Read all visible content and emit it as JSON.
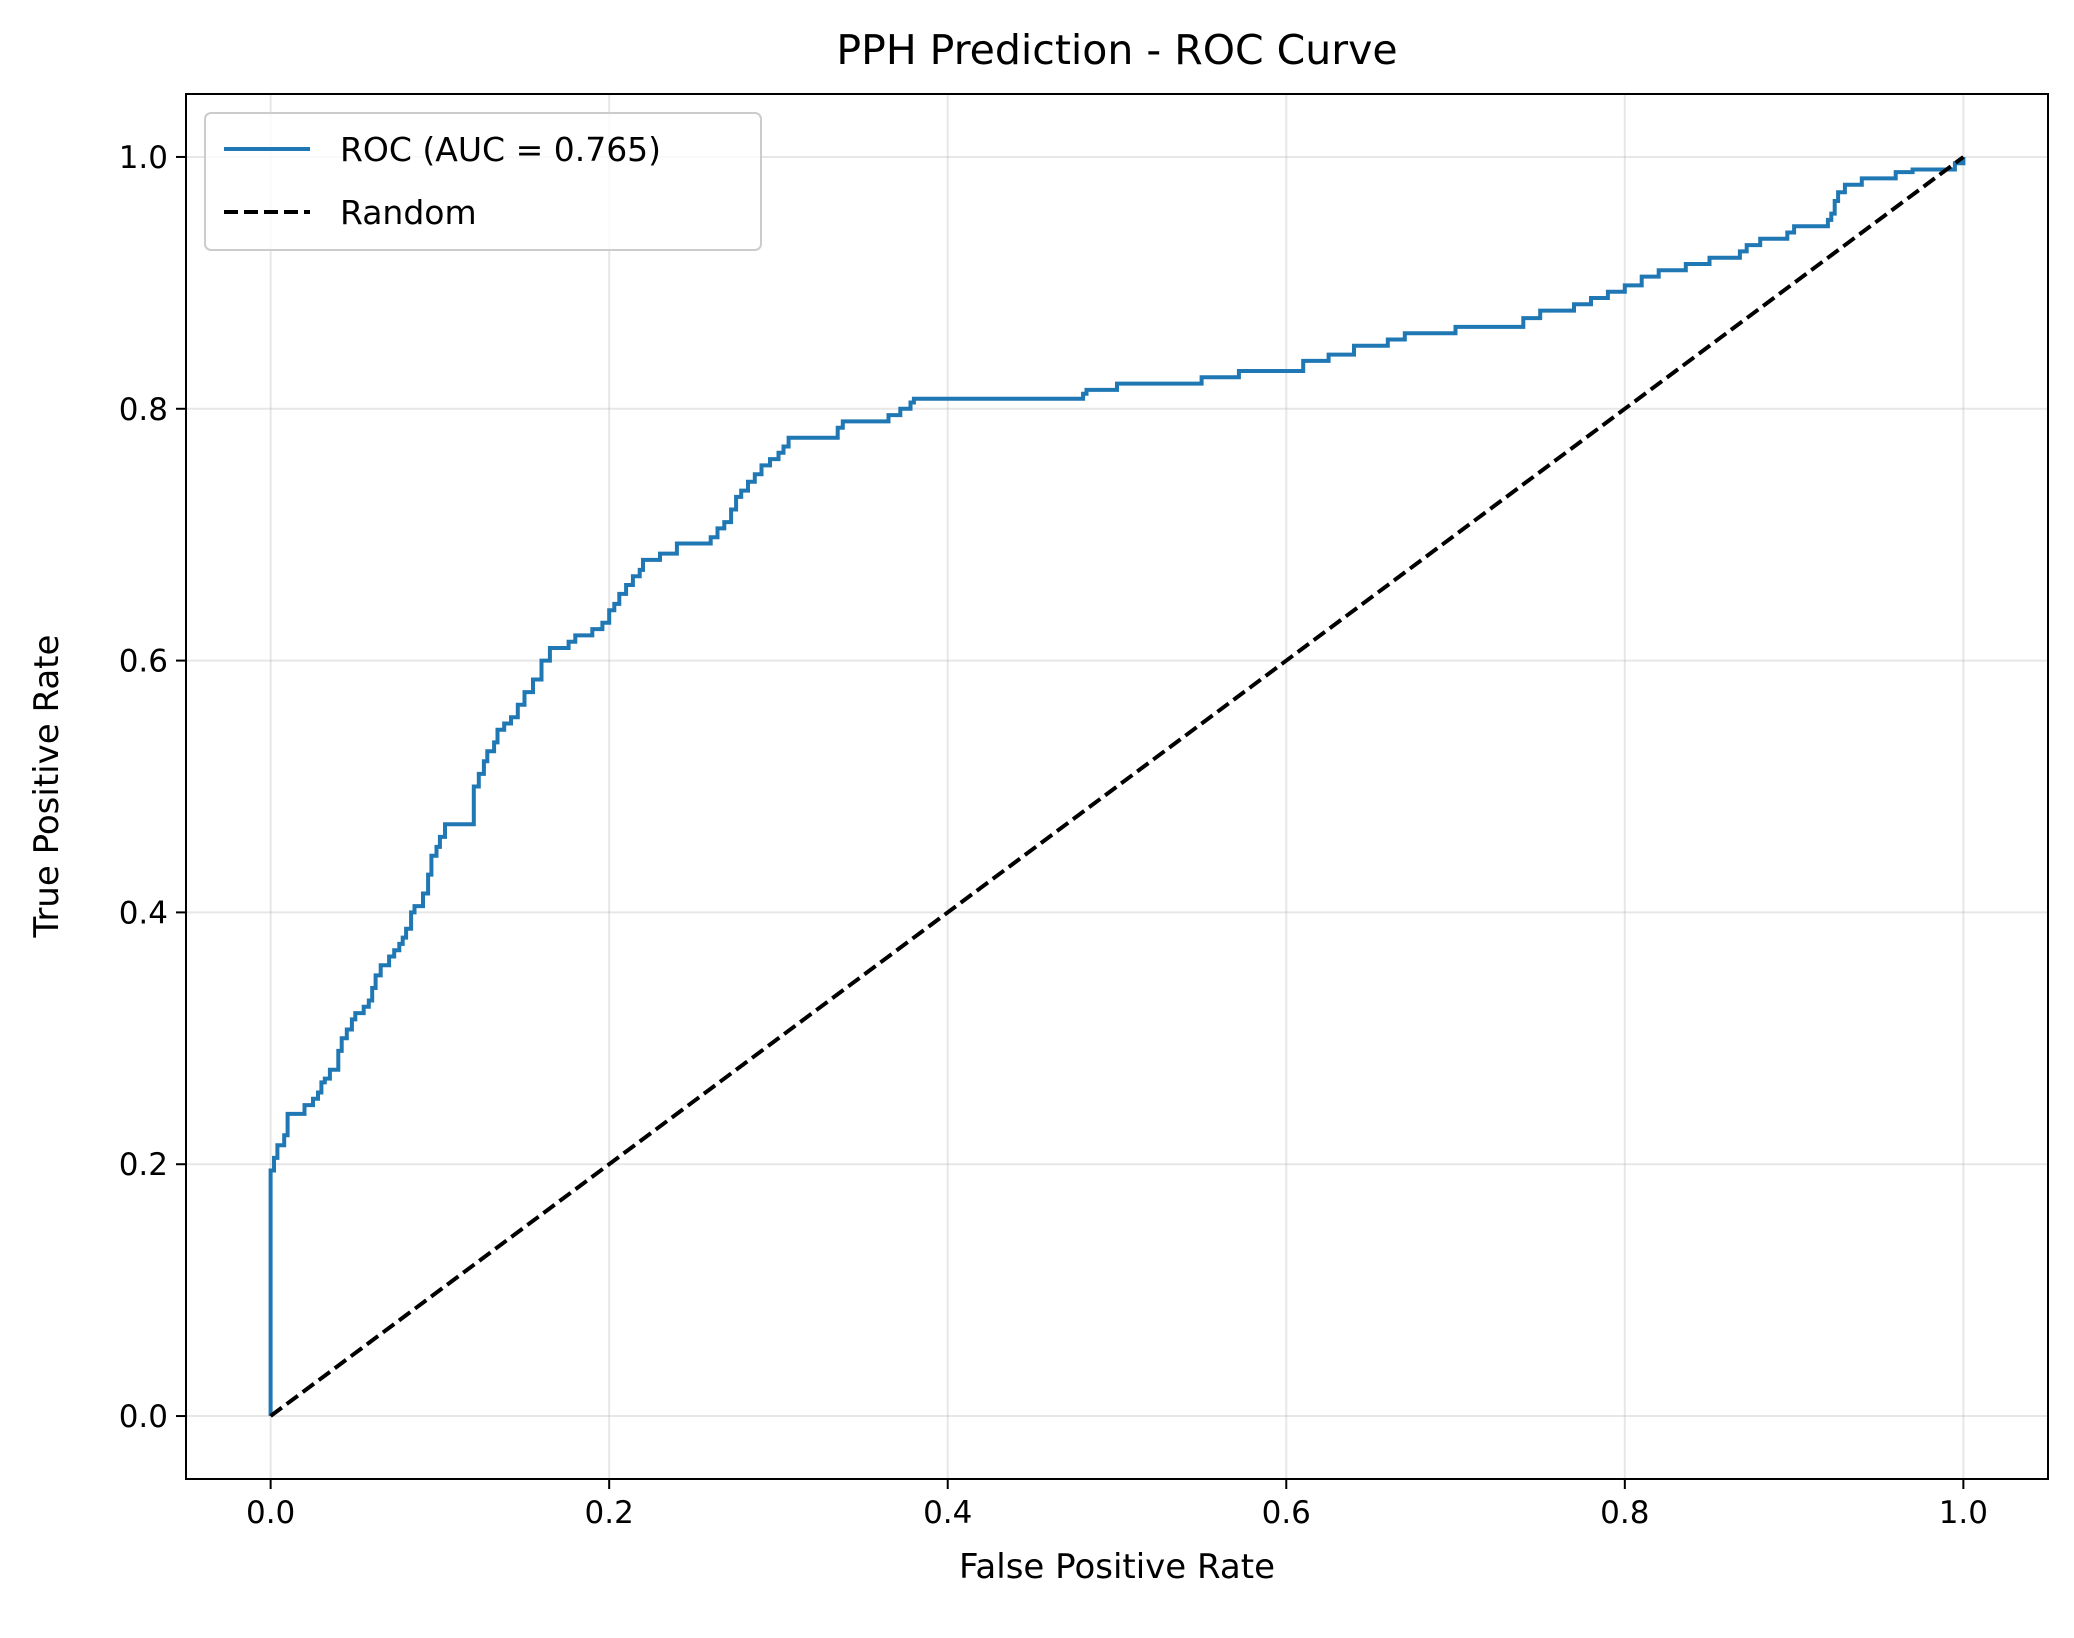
{
  "chart_data": {
    "type": "line",
    "title": "PPH Prediction - ROC Curve",
    "xlabel": "False Positive Rate",
    "ylabel": "True Positive Rate",
    "xlim": [
      -0.05,
      1.05
    ],
    "ylim": [
      -0.05,
      1.05
    ],
    "x_ticks": [
      "0.0",
      "0.2",
      "0.4",
      "0.6",
      "0.8",
      "1.0"
    ],
    "y_ticks": [
      "0.0",
      "0.2",
      "0.4",
      "0.6",
      "0.8",
      "1.0"
    ],
    "grid": true,
    "legend_position": "top-left",
    "series": [
      {
        "name": "ROC (AUC = 0.765)",
        "color": "#1f77b4",
        "style": "solid",
        "step": true,
        "x": [
          0.0,
          0.0,
          0.002,
          0.004,
          0.008,
          0.01,
          0.02,
          0.025,
          0.028,
          0.03,
          0.032,
          0.035,
          0.04,
          0.042,
          0.045,
          0.048,
          0.05,
          0.055,
          0.058,
          0.06,
          0.062,
          0.065,
          0.07,
          0.073,
          0.076,
          0.078,
          0.08,
          0.083,
          0.085,
          0.09,
          0.093,
          0.095,
          0.098,
          0.1,
          0.103,
          0.12,
          0.123,
          0.126,
          0.128,
          0.132,
          0.134,
          0.138,
          0.142,
          0.146,
          0.15,
          0.155,
          0.16,
          0.165,
          0.176,
          0.18,
          0.19,
          0.196,
          0.2,
          0.203,
          0.206,
          0.21,
          0.214,
          0.218,
          0.22,
          0.23,
          0.24,
          0.26,
          0.264,
          0.268,
          0.272,
          0.275,
          0.278,
          0.282,
          0.286,
          0.29,
          0.295,
          0.3,
          0.303,
          0.306,
          0.335,
          0.338,
          0.365,
          0.372,
          0.378,
          0.38,
          0.48,
          0.482,
          0.5,
          0.55,
          0.572,
          0.61,
          0.625,
          0.64,
          0.66,
          0.67,
          0.7,
          0.74,
          0.75,
          0.77,
          0.78,
          0.79,
          0.8,
          0.81,
          0.82,
          0.836,
          0.85,
          0.868,
          0.872,
          0.88,
          0.896,
          0.9,
          0.92,
          0.922,
          0.924,
          0.926,
          0.93,
          0.94,
          0.96,
          0.97,
          0.98,
          0.99,
          0.995,
          1.0,
          1.0
        ],
        "y": [
          0.0,
          0.195,
          0.205,
          0.215,
          0.223,
          0.24,
          0.247,
          0.252,
          0.257,
          0.265,
          0.268,
          0.275,
          0.29,
          0.3,
          0.307,
          0.315,
          0.32,
          0.325,
          0.33,
          0.34,
          0.35,
          0.358,
          0.365,
          0.37,
          0.375,
          0.38,
          0.387,
          0.4,
          0.405,
          0.415,
          0.43,
          0.445,
          0.452,
          0.46,
          0.47,
          0.5,
          0.51,
          0.52,
          0.528,
          0.535,
          0.545,
          0.55,
          0.555,
          0.565,
          0.575,
          0.585,
          0.6,
          0.61,
          0.615,
          0.62,
          0.625,
          0.63,
          0.64,
          0.645,
          0.653,
          0.66,
          0.667,
          0.672,
          0.68,
          0.685,
          0.693,
          0.698,
          0.705,
          0.71,
          0.72,
          0.73,
          0.735,
          0.742,
          0.748,
          0.755,
          0.76,
          0.765,
          0.77,
          0.777,
          0.785,
          0.79,
          0.795,
          0.8,
          0.805,
          0.808,
          0.812,
          0.815,
          0.82,
          0.825,
          0.83,
          0.838,
          0.843,
          0.85,
          0.855,
          0.86,
          0.865,
          0.872,
          0.878,
          0.883,
          0.888,
          0.893,
          0.898,
          0.905,
          0.91,
          0.915,
          0.92,
          0.925,
          0.93,
          0.935,
          0.94,
          0.945,
          0.95,
          0.955,
          0.965,
          0.972,
          0.978,
          0.983,
          0.988,
          0.99,
          0.99,
          0.99,
          0.995,
          1.0,
          1.0
        ]
      },
      {
        "name": "Random",
        "color": "#000000",
        "style": "dashed",
        "x": [
          0,
          1
        ],
        "y": [
          0,
          1
        ]
      }
    ]
  }
}
